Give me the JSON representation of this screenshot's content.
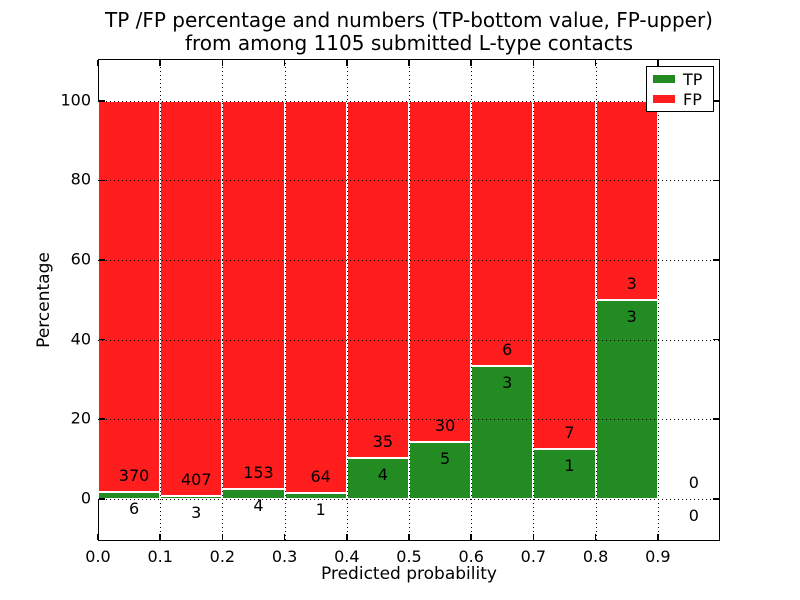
{
  "figure": {
    "title_line1": "TP /FP percentage and numbers (TP-bottom value, FP-upper)",
    "title_line2": "from among 1105 submitted L-type contacts",
    "xlabel": "Predicted probability",
    "ylabel": "Percentage"
  },
  "legend": {
    "position": "upper-right",
    "entries": [
      {
        "label": "TP",
        "color": "#228c22"
      },
      {
        "label": "FP",
        "color": "#ff1d1d"
      }
    ]
  },
  "colors": {
    "tp_green": "#228c22",
    "fp_red": "#ff1d1d",
    "bar_edge": "#ffffff",
    "grid": "#000000",
    "frame": "#000000",
    "background": "#ffffff",
    "text": "#000000"
  },
  "chart_data": {
    "type": "bar",
    "stacked": true,
    "title": "TP /FP percentage and numbers (TP-bottom value, FP-upper) from among 1105 submitted L-type contacts",
    "xlabel": "Predicted probability",
    "ylabel": "Percentage",
    "xlim": [
      0.0,
      1.0
    ],
    "ylim": [
      -10.6,
      110.5
    ],
    "x_ticks": [
      0.0,
      0.1,
      0.2,
      0.3,
      0.4,
      0.5,
      0.6,
      0.7,
      0.8,
      0.9
    ],
    "x_tick_labels": [
      "0.0",
      "0.1",
      "0.2",
      "0.3",
      "0.4",
      "0.5",
      "0.6",
      "0.7",
      "0.8",
      "0.9"
    ],
    "y_ticks": [
      0,
      20,
      40,
      60,
      80,
      100
    ],
    "grid": "dotted-on-top",
    "legend_position": "upper right",
    "total_contacts": 1105,
    "series": [
      {
        "name": "TP",
        "color": "#228c22",
        "stack": "bottom"
      },
      {
        "name": "FP",
        "color": "#ff1d1d",
        "stack": "top"
      }
    ],
    "bins": [
      {
        "range": [
          0.0,
          0.1
        ],
        "tp_count": 6,
        "fp_count": 370,
        "tp_pct": 1.6,
        "fp_pct": 98.4
      },
      {
        "range": [
          0.1,
          0.2
        ],
        "tp_count": 3,
        "fp_count": 407,
        "tp_pct": 0.73,
        "fp_pct": 99.27
      },
      {
        "range": [
          0.2,
          0.3
        ],
        "tp_count": 4,
        "fp_count": 153,
        "tp_pct": 2.55,
        "fp_pct": 97.45
      },
      {
        "range": [
          0.3,
          0.4
        ],
        "tp_count": 1,
        "fp_count": 64,
        "tp_pct": 1.54,
        "fp_pct": 98.46
      },
      {
        "range": [
          0.4,
          0.5
        ],
        "tp_count": 4,
        "fp_count": 35,
        "tp_pct": 10.26,
        "fp_pct": 89.74
      },
      {
        "range": [
          0.5,
          0.6
        ],
        "tp_count": 5,
        "fp_count": 30,
        "tp_pct": 14.29,
        "fp_pct": 85.71
      },
      {
        "range": [
          0.6,
          0.7
        ],
        "tp_count": 3,
        "fp_count": 6,
        "tp_pct": 33.33,
        "fp_pct": 66.67
      },
      {
        "range": [
          0.7,
          0.8
        ],
        "tp_count": 1,
        "fp_count": 7,
        "tp_pct": 12.5,
        "fp_pct": 87.5
      },
      {
        "range": [
          0.8,
          0.9
        ],
        "tp_count": 3,
        "fp_count": 3,
        "tp_pct": 50.0,
        "fp_pct": 50.0
      },
      {
        "range": [
          0.9,
          1.0
        ],
        "tp_count": 0,
        "fp_count": 0,
        "tp_pct": null,
        "fp_pct": null
      }
    ]
  }
}
